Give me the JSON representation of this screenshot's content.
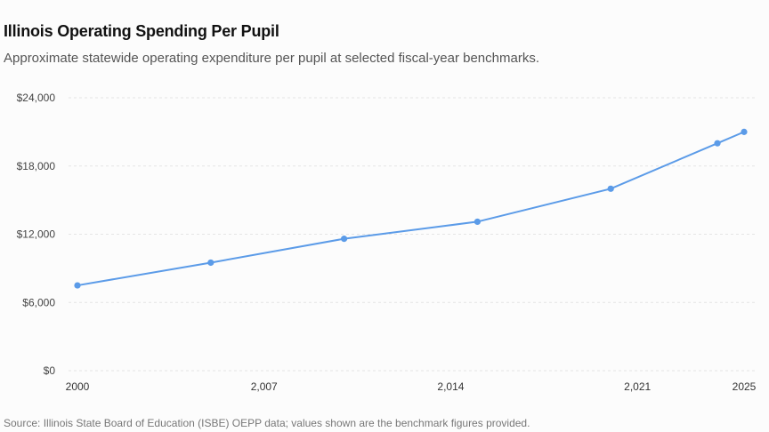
{
  "header": {
    "title": "Illinois Operating Spending Per Pupil",
    "subtitle": "Approximate statewide operating expenditure per pupil at selected fiscal-year benchmarks."
  },
  "footer": {
    "source": "Source: Illinois State Board of Education (ISBE) OEPP data; values shown are the benchmark figures provided."
  },
  "colors": {
    "series": "#5b9be8",
    "grid": "#e4e4e4"
  },
  "chart_data": {
    "type": "line",
    "title": "Illinois Operating Spending Per Pupil",
    "subtitle": "Approximate statewide operating expenditure per pupil at selected fiscal-year benchmarks.",
    "xlabel": "",
    "ylabel": "",
    "xlim": [
      2000,
      2025
    ],
    "ylim": [
      0,
      24000
    ],
    "grid": true,
    "legend": "none",
    "x_ticks": [
      2000,
      2007,
      2014,
      2021,
      2025
    ],
    "x_tick_labels": [
      "2000",
      "2,007",
      "2,014",
      "2,021",
      "2025"
    ],
    "y_ticks": [
      0,
      6000,
      12000,
      18000,
      24000
    ],
    "y_tick_labels": [
      "$0",
      "$6,000",
      "$12,000",
      "$18,000",
      "$24,000"
    ],
    "series": [
      {
        "x": [
          2000,
          2005,
          2010,
          2015,
          2020,
          2024,
          2025
        ],
        "y": [
          7500,
          9500,
          11600,
          13100,
          16000,
          20000,
          21000
        ]
      }
    ]
  }
}
